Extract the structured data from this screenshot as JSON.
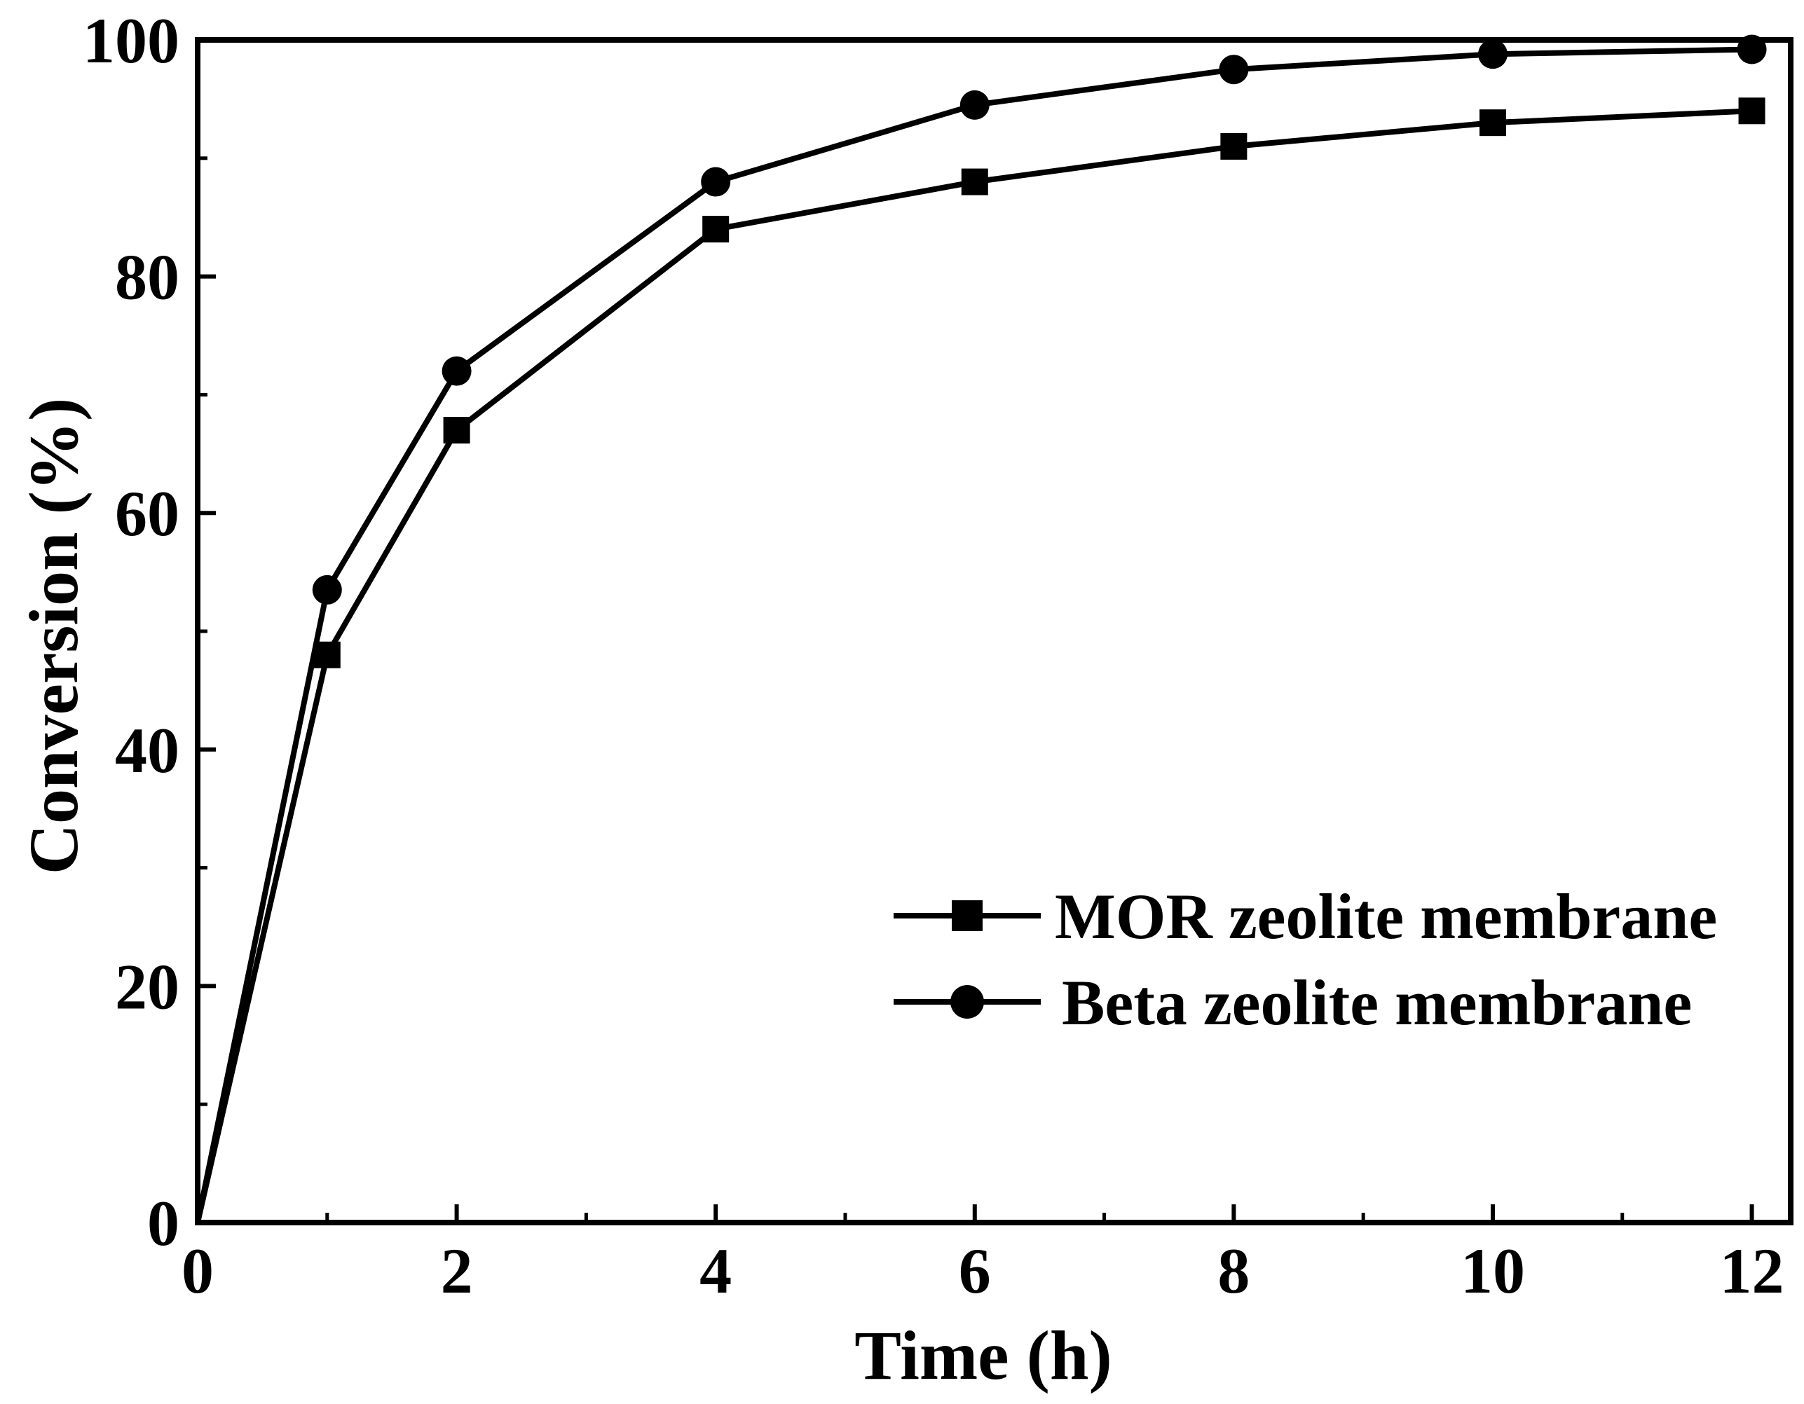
{
  "chart_data": {
    "type": "line",
    "title": "",
    "xlabel": "Time (h)",
    "ylabel": "Conversion (%)",
    "xlim": [
      0,
      12.3
    ],
    "ylim": [
      0,
      100
    ],
    "x_major_ticks": [
      0,
      2,
      4,
      6,
      8,
      10,
      12
    ],
    "x_minor_ticks": [
      1,
      3,
      5,
      7,
      9,
      11
    ],
    "y_major_ticks": [
      0,
      20,
      40,
      60,
      80,
      100
    ],
    "y_minor_ticks": [
      10,
      30,
      50,
      70,
      90
    ],
    "x_tick_labels": [
      "0",
      "2",
      "4",
      "6",
      "8",
      "10",
      "12"
    ],
    "y_tick_labels": [
      "0",
      "20",
      "40",
      "60",
      "80",
      "100"
    ],
    "grid": false,
    "legend_position": "lower-right",
    "series": [
      {
        "name": "MOR zeolite membrane",
        "marker": "square",
        "color": "#000000",
        "x": [
          0,
          1,
          2,
          4,
          6,
          8,
          10,
          12
        ],
        "y": [
          0,
          48,
          67,
          84,
          88,
          91,
          93,
          94
        ]
      },
      {
        "name": "Beta zeolite membrane",
        "marker": "circle",
        "color": "#000000",
        "x": [
          0,
          1,
          2,
          4,
          6,
          8,
          10,
          12
        ],
        "y": [
          0,
          53.5,
          72,
          88,
          94.5,
          97.5,
          98.8,
          99.2
        ]
      }
    ]
  }
}
